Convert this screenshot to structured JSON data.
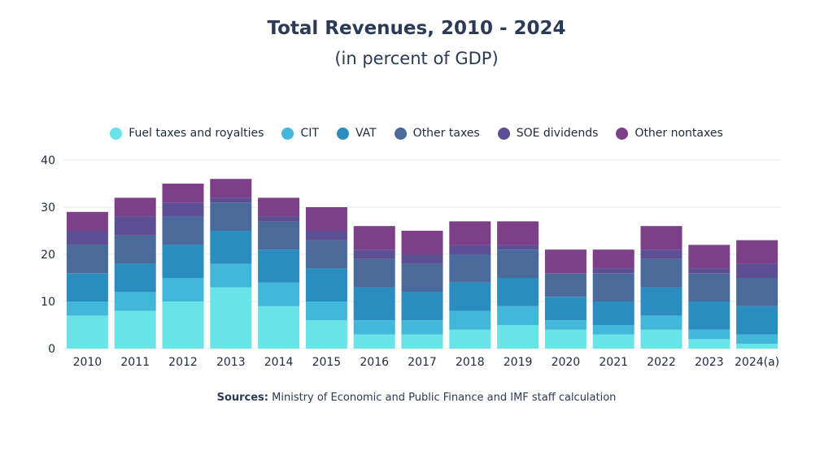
{
  "chart_data": {
    "type": "bar",
    "stacked": true,
    "title": "Total Revenues, 2010 - 2024",
    "subtitle": "(in percent of GDP)",
    "categories": [
      "2010",
      "2011",
      "2012",
      "2013",
      "2014",
      "2015",
      "2016",
      "2017",
      "2018",
      "2019",
      "2020",
      "2021",
      "2022",
      "2023",
      "2024(a)"
    ],
    "ylim": [
      0,
      40
    ],
    "yticks": [
      0,
      10,
      20,
      30,
      40
    ],
    "grid": true,
    "legend_position": "top",
    "series": [
      {
        "name": "Fuel taxes and royalties",
        "color": "#6ae3e8",
        "values": [
          7,
          8,
          10,
          13,
          9,
          6,
          3,
          3,
          4,
          5,
          4,
          3,
          4,
          2,
          1
        ]
      },
      {
        "name": "CIT",
        "color": "#42b7d9",
        "values": [
          3,
          4,
          5,
          5,
          5,
          4,
          3,
          3,
          4,
          4,
          2,
          2,
          3,
          2,
          2
        ]
      },
      {
        "name": "VAT",
        "color": "#2b8cbf",
        "values": [
          6,
          6,
          7,
          7,
          7,
          7,
          7,
          6,
          6,
          6,
          5,
          5,
          6,
          6,
          6
        ]
      },
      {
        "name": "Other taxes",
        "color": "#4a6a9c",
        "values": [
          6,
          6,
          6,
          6,
          6,
          6,
          6,
          6,
          6,
          6,
          5,
          6,
          6,
          6,
          6
        ]
      },
      {
        "name": "SOE dividends",
        "color": "#5c4f93",
        "values": [
          3,
          4,
          3,
          1,
          1,
          2,
          2,
          2,
          2,
          1,
          0,
          1,
          2,
          1,
          3
        ]
      },
      {
        "name": "Other nontaxes",
        "color": "#7d3f88",
        "values": [
          4,
          4,
          4,
          4,
          4,
          5,
          5,
          5,
          5,
          5,
          5,
          4,
          5,
          5,
          5
        ]
      }
    ]
  },
  "source": {
    "label": "Sources:",
    "text": " Ministry of Economic and Public Finance and IMF staff calculation"
  }
}
